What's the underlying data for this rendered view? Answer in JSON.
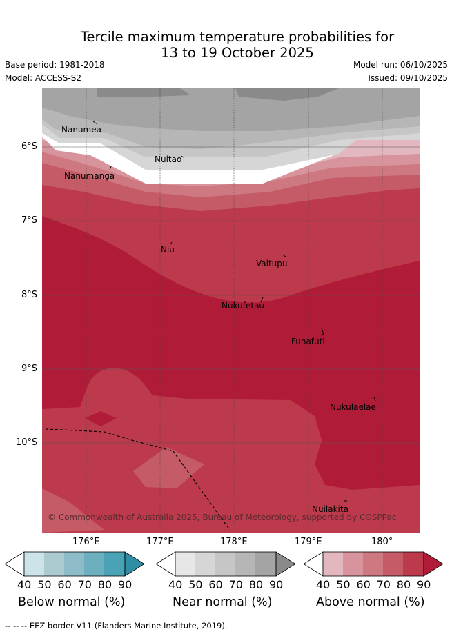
{
  "header": {
    "title_line1": "Tercile maximum temperature probabilities for",
    "title_line2": "13 to 19 October 2025",
    "base_period": "Base period: 1981-2018",
    "model": "Model: ACCESS-S2",
    "model_run": "Model run: 06/10/2025",
    "issued": "Issued: 09/10/2025"
  },
  "map": {
    "lat_labels": [
      "6°S",
      "7°S",
      "8°S",
      "9°S",
      "10°S"
    ],
    "lon_labels": [
      "176°E",
      "177°E",
      "178°E",
      "179°E",
      "180°"
    ],
    "places": [
      "Nanumea",
      "Nanumanga",
      "Nuitao",
      "Niu",
      "Vaitupu",
      "Nukufetau",
      "Funafuti",
      "Nukulaelae",
      "Nuilakita"
    ],
    "copyright": "© Commonwealth of Australia 2025, Bureau of Meteorology, supported by COSPPac"
  },
  "colorbars": [
    {
      "title": "Below normal (%)",
      "ticks": [
        "40",
        "50",
        "60",
        "70",
        "80",
        "90"
      ],
      "colors": [
        "#ffffff",
        "#cde3ea",
        "#abcbd1",
        "#8ebbc8",
        "#6cafbe",
        "#4aa3b4",
        "#2e8ea3"
      ]
    },
    {
      "title": "Near normal (%)",
      "ticks": [
        "40",
        "50",
        "60",
        "70",
        "80",
        "90"
      ],
      "colors": [
        "#ffffff",
        "#e7e7e7",
        "#d6d6d6",
        "#c6c6c6",
        "#b6b6b6",
        "#a4a4a4",
        "#8a8a8a"
      ]
    },
    {
      "title": "Above normal (%)",
      "ticks": [
        "40",
        "50",
        "60",
        "70",
        "80",
        "90"
      ],
      "colors": [
        "#ffffff",
        "#e3b7bf",
        "#d8949c",
        "#ce7881",
        "#c45b67",
        "#bd3a4c",
        "#b01c38"
      ]
    }
  ],
  "footer": {
    "legend_line": "--  --  -- EEZ border V11 (Flanders Marine Institute, 2019)."
  }
}
